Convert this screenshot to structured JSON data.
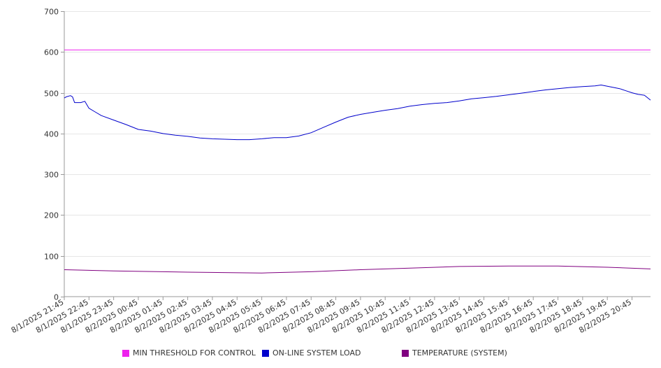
{
  "chart_data": {
    "type": "line",
    "title": "",
    "xlabel": "",
    "ylabel": "",
    "ylim": [
      0,
      700
    ],
    "yticks": [
      0,
      100,
      200,
      300,
      400,
      500,
      600,
      700
    ],
    "grid": true,
    "legend_position": "bottom",
    "x_tick_labels": [
      "8/1/2025 21:45",
      "8/1/2025 22:45",
      "8/1/2025 23:45",
      "8/2/2025 00:45",
      "8/2/2025 01:45",
      "8/2/2025 02:45",
      "8/2/2025 03:45",
      "8/2/2025 04:45",
      "8/2/2025 05:45",
      "8/2/2025 06:45",
      "8/2/2025 07:45",
      "8/2/2025 08:45",
      "8/2/2025 09:45",
      "8/2/2025 10:45",
      "8/2/2025 11:45",
      "8/2/2025 12:45",
      "8/2/2025 13:45",
      "8/2/2025 14:45",
      "8/2/2025 15:45",
      "8/2/2025 16:45",
      "8/2/2025 17:45",
      "8/2/2025 18:45",
      "8/2/2025 19:45",
      "8/2/2025 20:45"
    ],
    "x_range": [
      "8/1/2025 21:45",
      "8/2/2025 21:30"
    ],
    "series": [
      {
        "name": "MIN THRESHOLD FOR CONTROL",
        "color": "#ee22ee",
        "points": [
          [
            "8/1/2025 21:45",
            605
          ],
          [
            "8/2/2025 21:30",
            605
          ]
        ]
      },
      {
        "name": "ON-LINE SYSTEM LOAD",
        "color": "#0000cc",
        "points": [
          [
            "8/1/2025 21:45",
            487
          ],
          [
            "8/1/2025 21:50",
            490
          ],
          [
            "8/1/2025 22:00",
            493
          ],
          [
            "8/1/2025 22:05",
            490
          ],
          [
            "8/1/2025 22:10",
            476
          ],
          [
            "8/1/2025 22:25",
            476
          ],
          [
            "8/1/2025 22:35",
            479
          ],
          [
            "8/1/2025 22:45",
            462
          ],
          [
            "8/1/2025 23:00",
            453
          ],
          [
            "8/1/2025 23:15",
            444
          ],
          [
            "8/1/2025 23:45",
            433
          ],
          [
            "8/2/2025 00:15",
            422
          ],
          [
            "8/2/2025 00:45",
            410
          ],
          [
            "8/2/2025 01:15",
            406
          ],
          [
            "8/2/2025 01:45",
            400
          ],
          [
            "8/2/2025 02:15",
            396
          ],
          [
            "8/2/2025 02:45",
            393
          ],
          [
            "8/2/2025 03:15",
            389
          ],
          [
            "8/2/2025 03:45",
            387
          ],
          [
            "8/2/2025 04:15",
            386
          ],
          [
            "8/2/2025 04:45",
            385
          ],
          [
            "8/2/2025 05:15",
            385
          ],
          [
            "8/2/2025 05:45",
            387
          ],
          [
            "8/2/2025 06:15",
            390
          ],
          [
            "8/2/2025 06:45",
            390
          ],
          [
            "8/2/2025 07:15",
            394
          ],
          [
            "8/2/2025 07:45",
            402
          ],
          [
            "8/2/2025 08:15",
            415
          ],
          [
            "8/2/2025 08:45",
            428
          ],
          [
            "8/2/2025 09:15",
            440
          ],
          [
            "8/2/2025 09:45",
            447
          ],
          [
            "8/2/2025 10:15",
            452
          ],
          [
            "8/2/2025 10:45",
            457
          ],
          [
            "8/2/2025 11:15",
            461
          ],
          [
            "8/2/2025 11:45",
            467
          ],
          [
            "8/2/2025 12:15",
            471
          ],
          [
            "8/2/2025 12:45",
            474
          ],
          [
            "8/2/2025 13:15",
            476
          ],
          [
            "8/2/2025 13:45",
            480
          ],
          [
            "8/2/2025 14:15",
            485
          ],
          [
            "8/2/2025 14:45",
            488
          ],
          [
            "8/2/2025 15:15",
            491
          ],
          [
            "8/2/2025 15:45",
            495
          ],
          [
            "8/2/2025 16:15",
            499
          ],
          [
            "8/2/2025 16:45",
            503
          ],
          [
            "8/2/2025 17:15",
            507
          ],
          [
            "8/2/2025 17:45",
            510
          ],
          [
            "8/2/2025 18:15",
            513
          ],
          [
            "8/2/2025 18:45",
            515
          ],
          [
            "8/2/2025 19:15",
            517
          ],
          [
            "8/2/2025 19:30",
            519
          ],
          [
            "8/2/2025 19:45",
            516
          ],
          [
            "8/2/2025 20:00",
            513
          ],
          [
            "8/2/2025 20:15",
            510
          ],
          [
            "8/2/2025 20:30",
            505
          ],
          [
            "8/2/2025 20:45",
            500
          ],
          [
            "8/2/2025 21:00",
            496
          ],
          [
            "8/2/2025 21:15",
            494
          ],
          [
            "8/2/2025 21:20",
            490
          ],
          [
            "8/2/2025 21:30",
            482
          ]
        ]
      },
      {
        "name": "TEMPERATURE (SYSTEM)",
        "color": "#800080",
        "points": [
          [
            "8/1/2025 21:45",
            66
          ],
          [
            "8/1/2025 23:45",
            63
          ],
          [
            "8/2/2025 02:45",
            60
          ],
          [
            "8/2/2025 05:45",
            58
          ],
          [
            "8/2/2025 07:45",
            61
          ],
          [
            "8/2/2025 09:45",
            66
          ],
          [
            "8/2/2025 11:45",
            70
          ],
          [
            "8/2/2025 13:45",
            74
          ],
          [
            "8/2/2025 15:45",
            75
          ],
          [
            "8/2/2025 17:45",
            75
          ],
          [
            "8/2/2025 19:45",
            72
          ],
          [
            "8/2/2025 21:30",
            68
          ]
        ]
      }
    ]
  }
}
